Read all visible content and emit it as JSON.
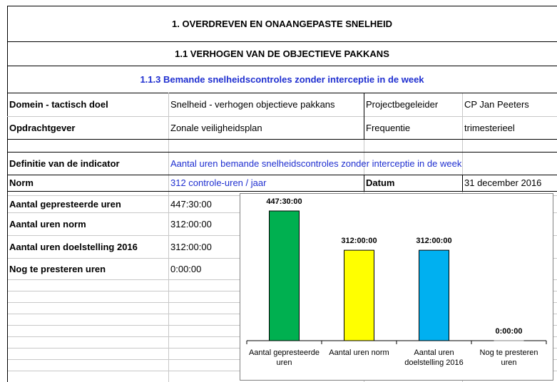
{
  "header": {
    "title": "1. OVERDREVEN EN ONAANGEPASTE SNELHEID",
    "subtitle": "1.1 VERHOGEN VAN DE OBJECTIEVE PAKKANS",
    "indicator": "1.1.3 Bemande snelheidscontroles zonder interceptie in de week"
  },
  "info": {
    "rows": [
      [
        "Domein - tactisch doel",
        "Snelheid - verhogen objectieve pakkans",
        "Projectbegeleider",
        "CP Jan Peeters"
      ],
      [
        "Opdrachtgever",
        "Zonale veiligheidsplan",
        "Frequentie",
        "trimesterieel"
      ]
    ]
  },
  "definition": {
    "label": "Definitie van de indicator",
    "value": "Aantal uren bemande snelheidscontroles zonder interceptie in de week"
  },
  "norm": {
    "label": "Norm",
    "value": "312 controle-uren / jaar",
    "date_label": "Datum",
    "date": "31 december 2016"
  },
  "hours": {
    "rows": [
      [
        "Aantal gepresteerde uren",
        "447:30:00"
      ],
      [
        "Aantal uren norm",
        "312:00:00"
      ],
      [
        "Aantal uren doelstelling 2016",
        "312:00:00"
      ],
      [
        "Nog te presteren uren",
        "0:00:00"
      ]
    ]
  },
  "chart": {
    "type": "bar",
    "categories": [
      "Aantal gepresteerde uren",
      "Aantal uren norm",
      "Aantal uren doelstelling 2016",
      "Nog te presteren uren"
    ],
    "values": [
      447.5,
      312,
      312,
      0
    ],
    "value_labels": [
      "447:30:00",
      "312:00:00",
      "312:00:00",
      "0:00:00"
    ],
    "colors": [
      "#00b050",
      "#ffff00",
      "#00b0f0",
      "#808080"
    ]
  }
}
